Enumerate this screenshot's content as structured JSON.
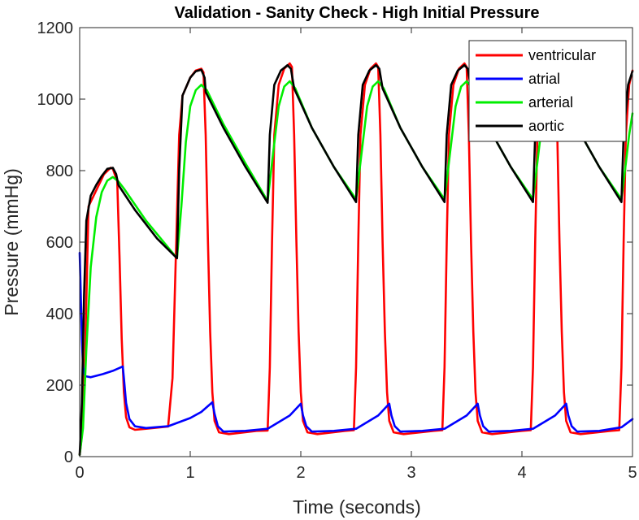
{
  "chart_data": {
    "type": "line",
    "title": "Validation - Sanity Check - High Initial Pressure",
    "xlabel": "Time (seconds)",
    "ylabel": "Pressure (mmHg)",
    "xlim": [
      0,
      5
    ],
    "ylim": [
      0,
      1200
    ],
    "xticks": [
      0,
      1,
      2,
      3,
      4,
      5
    ],
    "yticks": [
      0,
      200,
      400,
      600,
      800,
      1000,
      1200
    ],
    "legend_position": "top-right",
    "series": [
      {
        "name": "ventricular",
        "color": "#ff0000",
        "points": [
          [
            0,
            5
          ],
          [
            0.02,
            60
          ],
          [
            0.05,
            300
          ],
          [
            0.08,
            700
          ],
          [
            0.15,
            745
          ],
          [
            0.22,
            790
          ],
          [
            0.28,
            808
          ],
          [
            0.3,
            805
          ],
          [
            0.34,
            770
          ],
          [
            0.36,
            560
          ],
          [
            0.38,
            330
          ],
          [
            0.4,
            180
          ],
          [
            0.42,
            110
          ],
          [
            0.45,
            82
          ],
          [
            0.5,
            75
          ],
          [
            0.6,
            78
          ],
          [
            0.8,
            84
          ],
          [
            0.84,
            220
          ],
          [
            0.87,
            560
          ],
          [
            0.9,
            900
          ],
          [
            0.93,
            1010
          ],
          [
            1.0,
            1060
          ],
          [
            1.05,
            1080
          ],
          [
            1.1,
            1085
          ],
          [
            1.12,
            1075
          ],
          [
            1.14,
            900
          ],
          [
            1.16,
            600
          ],
          [
            1.18,
            350
          ],
          [
            1.2,
            180
          ],
          [
            1.22,
            100
          ],
          [
            1.26,
            68
          ],
          [
            1.35,
            63
          ],
          [
            1.6,
            72
          ],
          [
            1.7,
            73
          ],
          [
            1.72,
            250
          ],
          [
            1.74,
            600
          ],
          [
            1.76,
            900
          ],
          [
            1.8,
            1040
          ],
          [
            1.85,
            1085
          ],
          [
            1.9,
            1100
          ],
          [
            1.92,
            1090
          ],
          [
            1.94,
            900
          ],
          [
            1.96,
            600
          ],
          [
            1.98,
            350
          ],
          [
            2.0,
            180
          ],
          [
            2.02,
            100
          ],
          [
            2.06,
            68
          ],
          [
            2.15,
            63
          ],
          [
            2.4,
            72
          ],
          [
            2.48,
            74
          ],
          [
            2.5,
            250
          ],
          [
            2.52,
            600
          ],
          [
            2.54,
            900
          ],
          [
            2.58,
            1040
          ],
          [
            2.63,
            1085
          ],
          [
            2.68,
            1100
          ],
          [
            2.7,
            1090
          ],
          [
            2.72,
            900
          ],
          [
            2.74,
            600
          ],
          [
            2.76,
            350
          ],
          [
            2.78,
            180
          ],
          [
            2.8,
            100
          ],
          [
            2.84,
            68
          ],
          [
            2.93,
            63
          ],
          [
            3.2,
            72
          ],
          [
            3.28,
            74
          ],
          [
            3.3,
            250
          ],
          [
            3.32,
            600
          ],
          [
            3.34,
            900
          ],
          [
            3.38,
            1040
          ],
          [
            3.43,
            1085
          ],
          [
            3.48,
            1100
          ],
          [
            3.5,
            1090
          ],
          [
            3.52,
            900
          ],
          [
            3.54,
            600
          ],
          [
            3.56,
            350
          ],
          [
            3.58,
            180
          ],
          [
            3.6,
            100
          ],
          [
            3.64,
            68
          ],
          [
            3.73,
            63
          ],
          [
            4.0,
            72
          ],
          [
            4.08,
            74
          ],
          [
            4.1,
            250
          ],
          [
            4.12,
            600
          ],
          [
            4.14,
            900
          ],
          [
            4.18,
            1040
          ],
          [
            4.23,
            1085
          ],
          [
            4.28,
            1100
          ],
          [
            4.3,
            1090
          ],
          [
            4.32,
            900
          ],
          [
            4.34,
            600
          ],
          [
            4.36,
            350
          ],
          [
            4.38,
            180
          ],
          [
            4.4,
            100
          ],
          [
            4.44,
            68
          ],
          [
            4.53,
            63
          ],
          [
            4.8,
            72
          ],
          [
            4.88,
            74
          ],
          [
            4.9,
            250
          ],
          [
            4.92,
            600
          ],
          [
            4.94,
            900
          ],
          [
            4.97,
            1040
          ],
          [
            5.0,
            1080
          ]
        ]
      },
      {
        "name": "atrial",
        "color": "#0000ff",
        "points": [
          [
            0,
            570
          ],
          [
            0.01,
            450
          ],
          [
            0.02,
            330
          ],
          [
            0.03,
            250
          ],
          [
            0.05,
            225
          ],
          [
            0.1,
            222
          ],
          [
            0.2,
            230
          ],
          [
            0.3,
            240
          ],
          [
            0.39,
            252
          ],
          [
            0.4,
            220
          ],
          [
            0.42,
            150
          ],
          [
            0.45,
            105
          ],
          [
            0.5,
            85
          ],
          [
            0.6,
            80
          ],
          [
            0.8,
            85
          ],
          [
            1.0,
            108
          ],
          [
            1.1,
            125
          ],
          [
            1.2,
            152
          ],
          [
            1.22,
            120
          ],
          [
            1.25,
            85
          ],
          [
            1.3,
            70
          ],
          [
            1.5,
            72
          ],
          [
            1.7,
            78
          ],
          [
            1.9,
            115
          ],
          [
            2.0,
            148
          ],
          [
            2.02,
            115
          ],
          [
            2.05,
            85
          ],
          [
            2.1,
            70
          ],
          [
            2.3,
            72
          ],
          [
            2.5,
            78
          ],
          [
            2.7,
            115
          ],
          [
            2.8,
            148
          ],
          [
            2.82,
            115
          ],
          [
            2.85,
            85
          ],
          [
            2.9,
            70
          ],
          [
            3.1,
            72
          ],
          [
            3.3,
            78
          ],
          [
            3.5,
            115
          ],
          [
            3.6,
            148
          ],
          [
            3.62,
            115
          ],
          [
            3.65,
            85
          ],
          [
            3.7,
            70
          ],
          [
            3.9,
            72
          ],
          [
            4.1,
            78
          ],
          [
            4.3,
            115
          ],
          [
            4.4,
            148
          ],
          [
            4.42,
            115
          ],
          [
            4.45,
            85
          ],
          [
            4.5,
            70
          ],
          [
            4.7,
            72
          ],
          [
            4.9,
            82
          ],
          [
            5.0,
            105
          ]
        ]
      },
      {
        "name": "arterial",
        "color": "#00ee00",
        "points": [
          [
            0,
            5
          ],
          [
            0.03,
            80
          ],
          [
            0.06,
            300
          ],
          [
            0.1,
            530
          ],
          [
            0.15,
            670
          ],
          [
            0.2,
            740
          ],
          [
            0.25,
            772
          ],
          [
            0.3,
            782
          ],
          [
            0.35,
            770
          ],
          [
            0.4,
            750
          ],
          [
            0.6,
            660
          ],
          [
            0.8,
            585
          ],
          [
            0.88,
            555
          ],
          [
            0.92,
            700
          ],
          [
            0.96,
            880
          ],
          [
            1.0,
            980
          ],
          [
            1.05,
            1025
          ],
          [
            1.1,
            1040
          ],
          [
            1.15,
            1025
          ],
          [
            1.3,
            930
          ],
          [
            1.5,
            820
          ],
          [
            1.7,
            715
          ],
          [
            1.75,
            850
          ],
          [
            1.8,
            980
          ],
          [
            1.85,
            1035
          ],
          [
            1.9,
            1050
          ],
          [
            1.95,
            1030
          ],
          [
            2.1,
            920
          ],
          [
            2.3,
            810
          ],
          [
            2.5,
            720
          ],
          [
            2.55,
            850
          ],
          [
            2.6,
            980
          ],
          [
            2.65,
            1035
          ],
          [
            2.7,
            1050
          ],
          [
            2.75,
            1030
          ],
          [
            2.9,
            920
          ],
          [
            3.1,
            810
          ],
          [
            3.3,
            720
          ],
          [
            3.35,
            850
          ],
          [
            3.4,
            980
          ],
          [
            3.45,
            1035
          ],
          [
            3.5,
            1050
          ],
          [
            3.55,
            1030
          ],
          [
            3.7,
            920
          ],
          [
            3.9,
            810
          ],
          [
            4.1,
            720
          ],
          [
            4.15,
            850
          ],
          [
            4.2,
            980
          ],
          [
            4.25,
            1035
          ],
          [
            4.3,
            1050
          ],
          [
            4.35,
            1030
          ],
          [
            4.5,
            920
          ],
          [
            4.7,
            810
          ],
          [
            4.9,
            720
          ],
          [
            4.94,
            820
          ],
          [
            4.97,
            900
          ],
          [
            5.0,
            960
          ]
        ]
      },
      {
        "name": "aortic",
        "color": "#000000",
        "points": [
          [
            0,
            5
          ],
          [
            0.02,
            150
          ],
          [
            0.04,
            450
          ],
          [
            0.06,
            660
          ],
          [
            0.1,
            730
          ],
          [
            0.15,
            760
          ],
          [
            0.2,
            785
          ],
          [
            0.25,
            805
          ],
          [
            0.3,
            808
          ],
          [
            0.33,
            790
          ],
          [
            0.35,
            760
          ],
          [
            0.5,
            690
          ],
          [
            0.7,
            610
          ],
          [
            0.88,
            555
          ],
          [
            0.9,
            800
          ],
          [
            0.93,
            1010
          ],
          [
            1.0,
            1060
          ],
          [
            1.05,
            1078
          ],
          [
            1.1,
            1082
          ],
          [
            1.13,
            1060
          ],
          [
            1.14,
            1020
          ],
          [
            1.3,
            920
          ],
          [
            1.5,
            810
          ],
          [
            1.7,
            710
          ],
          [
            1.72,
            900
          ],
          [
            1.76,
            1040
          ],
          [
            1.82,
            1080
          ],
          [
            1.88,
            1095
          ],
          [
            1.91,
            1085
          ],
          [
            1.94,
            1030
          ],
          [
            2.1,
            920
          ],
          [
            2.3,
            810
          ],
          [
            2.5,
            712
          ],
          [
            2.52,
            900
          ],
          [
            2.56,
            1040
          ],
          [
            2.62,
            1080
          ],
          [
            2.68,
            1095
          ],
          [
            2.71,
            1085
          ],
          [
            2.74,
            1030
          ],
          [
            2.9,
            920
          ],
          [
            3.1,
            810
          ],
          [
            3.3,
            712
          ],
          [
            3.32,
            900
          ],
          [
            3.36,
            1040
          ],
          [
            3.42,
            1080
          ],
          [
            3.48,
            1095
          ],
          [
            3.51,
            1085
          ],
          [
            3.54,
            1030
          ],
          [
            3.7,
            920
          ],
          [
            3.9,
            810
          ],
          [
            4.1,
            712
          ],
          [
            4.12,
            900
          ],
          [
            4.16,
            1040
          ],
          [
            4.22,
            1080
          ],
          [
            4.28,
            1095
          ],
          [
            4.31,
            1085
          ],
          [
            4.34,
            1030
          ],
          [
            4.5,
            920
          ],
          [
            4.7,
            810
          ],
          [
            4.9,
            712
          ],
          [
            4.92,
            900
          ],
          [
            4.96,
            1040
          ],
          [
            5.0,
            1078
          ]
        ]
      }
    ]
  }
}
